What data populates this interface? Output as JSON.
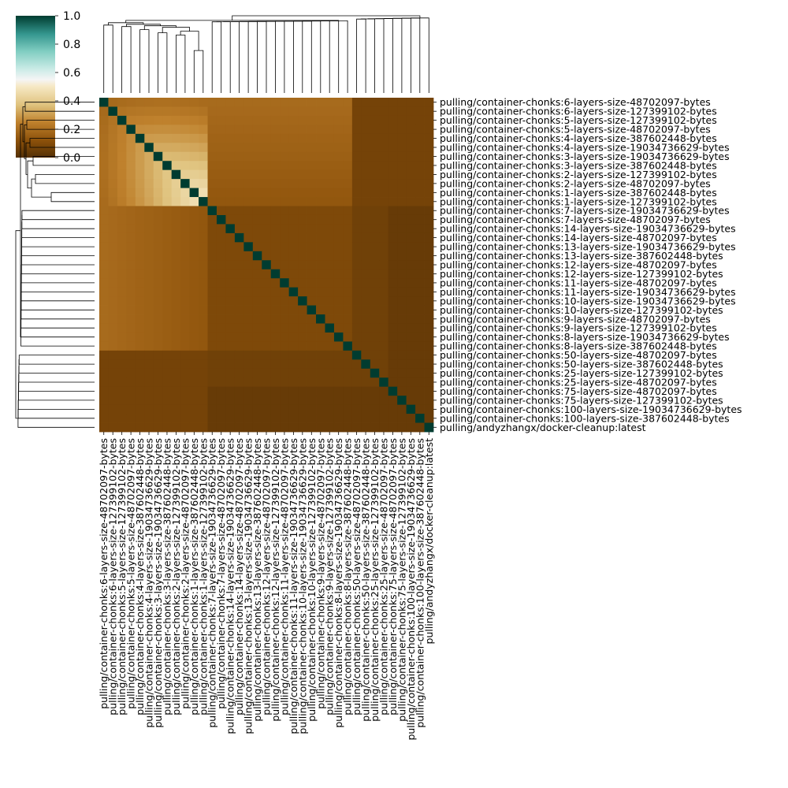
{
  "chart_data": {
    "type": "heatmap",
    "title": "",
    "xlabel": "",
    "ylabel": "",
    "labels": [
      "pulling/container-chonks:6-layers-size-48702097-bytes",
      "pulling/container-chonks:6-layers-size-127399102-bytes",
      "pulling/container-chonks:5-layers-size-127399102-bytes",
      "pulling/container-chonks:5-layers-size-48702097-bytes",
      "pulling/container-chonks:4-layers-size-387602448-bytes",
      "pulling/container-chonks:4-layers-size-19034736629-bytes",
      "pulling/container-chonks:3-layers-size-19034736629-bytes",
      "pulling/container-chonks:3-layers-size-387602448-bytes",
      "pulling/container-chonks:2-layers-size-127399102-bytes",
      "pulling/container-chonks:2-layers-size-48702097-bytes",
      "pulling/container-chonks:1-layers-size-387602448-bytes",
      "pulling/container-chonks:1-layers-size-127399102-bytes",
      "pulling/container-chonks:7-layers-size-19034736629-bytes",
      "pulling/container-chonks:7-layers-size-48702097-bytes",
      "pulling/container-chonks:14-layers-size-19034736629-bytes",
      "pulling/container-chonks:14-layers-size-48702097-bytes",
      "pulling/container-chonks:13-layers-size-19034736629-bytes",
      "pulling/container-chonks:13-layers-size-387602448-bytes",
      "pulling/container-chonks:12-layers-size-48702097-bytes",
      "pulling/container-chonks:12-layers-size-127399102-bytes",
      "pulling/container-chonks:11-layers-size-48702097-bytes",
      "pulling/container-chonks:11-layers-size-19034736629-bytes",
      "pulling/container-chonks:10-layers-size-19034736629-bytes",
      "pulling/container-chonks:10-layers-size-127399102-bytes",
      "pulling/container-chonks:9-layers-size-48702097-bytes",
      "pulling/container-chonks:9-layers-size-127399102-bytes",
      "pulling/container-chonks:8-layers-size-19034736629-bytes",
      "pulling/container-chonks:8-layers-size-387602448-bytes",
      "pulling/container-chonks:50-layers-size-48702097-bytes",
      "pulling/container-chonks:50-layers-size-387602448-bytes",
      "pulling/container-chonks:25-layers-size-127399102-bytes",
      "pulling/container-chonks:25-layers-size-48702097-bytes",
      "pulling/container-chonks:75-layers-size-48702097-bytes",
      "pulling/container-chonks:75-layers-size-127399102-bytes",
      "pulling/container-chonks:100-layers-size-19034736629-bytes",
      "pulling/container-chonks:100-layers-size-387602448-bytes",
      "pulling/andyzhangx/docker-cleanup:latest"
    ],
    "diagonal_value": 1.0,
    "cluster_block": {
      "end_index": 12,
      "within_max": 0.5
    },
    "colorbar": {
      "colormap": "BrBG",
      "vmin": 0.0,
      "vmax": 1.0,
      "ticks": [
        "0.0",
        "0.2",
        "0.4",
        "0.6",
        "0.8",
        "1.0"
      ]
    },
    "dendrograms": {
      "row": true,
      "column": true
    },
    "grid": false,
    "colors": {
      "low": "#5a3404",
      "mid_low": "#b5741f",
      "mid": "#f4ebd2",
      "high": "#00453b",
      "dendrogram_line": "#000000"
    }
  }
}
